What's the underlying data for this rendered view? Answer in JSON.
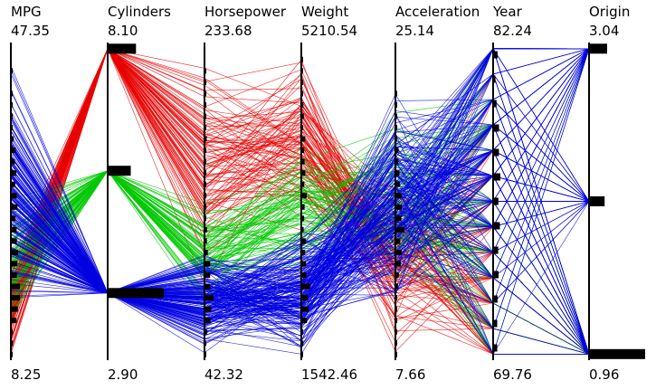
{
  "chart_data": {
    "type": "parallel-coordinates",
    "title": "",
    "axes": [
      {
        "label": "MPG",
        "max": "47.35",
        "min": "8.25",
        "max_value": 47.35,
        "min_value": 8.25
      },
      {
        "label": "Cylinders",
        "max": "8.10",
        "min": "2.90",
        "max_value": 8.1,
        "min_value": 2.9
      },
      {
        "label": "Horsepower",
        "max": "233.68",
        "min": "42.32",
        "max_value": 233.68,
        "min_value": 42.32
      },
      {
        "label": "Weight",
        "max": "5210.54",
        "min": "1542.46",
        "max_value": 5210.54,
        "min_value": 1542.46
      },
      {
        "label": "Acceleration",
        "max": "25.14",
        "min": "7.66",
        "max_value": 25.14,
        "min_value": 7.66
      },
      {
        "label": "Year",
        "max": "82.24",
        "min": "69.76",
        "max_value": 82.24,
        "min_value": 69.76
      },
      {
        "label": "Origin",
        "max": "3.04",
        "min": "0.96",
        "max_value": 3.04,
        "min_value": 0.96
      }
    ],
    "color_by": "Cylinders",
    "colors": {
      "8": "#e80000",
      "6": "#00c800",
      "4": "#0000e0",
      "other": "#3c78ff"
    },
    "axis_color": "#000000",
    "histograms": {
      "Cylinders": [
        {
          "value": 8,
          "count": 103
        },
        {
          "value": 6,
          "count": 84
        },
        {
          "value": 4,
          "count": 204
        }
      ],
      "Origin": [
        {
          "value": 3,
          "count": 79
        },
        {
          "value": 2,
          "count": 68
        },
        {
          "value": 1,
          "count": 245
        }
      ]
    },
    "n_records": 392
  }
}
